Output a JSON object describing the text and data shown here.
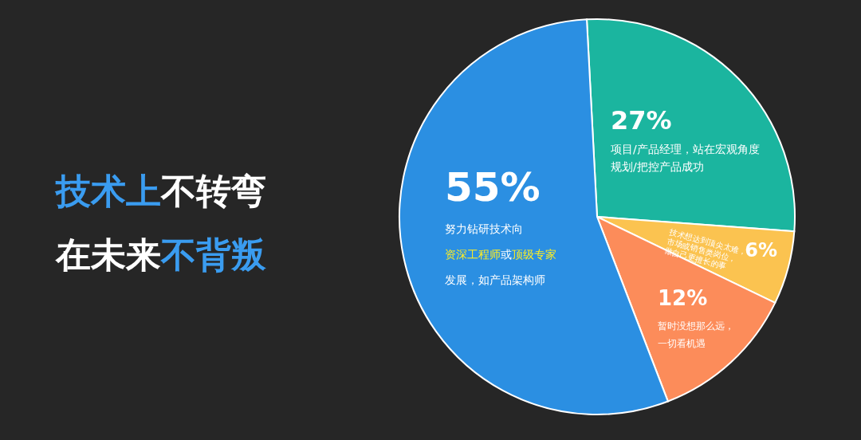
{
  "chart_data": {
    "type": "pie",
    "title": "技术上不转弯",
    "subtitle": "在未来不背叛",
    "categories": [
      null,
      null,
      null,
      null
    ],
    "values": [
      27,
      6,
      12,
      55
    ],
    "value_labels": [
      "27%",
      "6%",
      "12%",
      "55%"
    ],
    "colors": [
      "#1bb59f",
      "#fbc350",
      "#fc8c5a",
      "#2b8fe2"
    ],
    "annotations": [
      "项目/产品经理，站在宏观角度规划/把控产品成功",
      "技术想达到顶尖太难，市场或销售类岗位，做自己更擅长的事",
      "暂时没想那么远，一切看机遇",
      "努力钻研技术向资深工程师或顶级专家发展，如产品架构师"
    ]
  }
}
